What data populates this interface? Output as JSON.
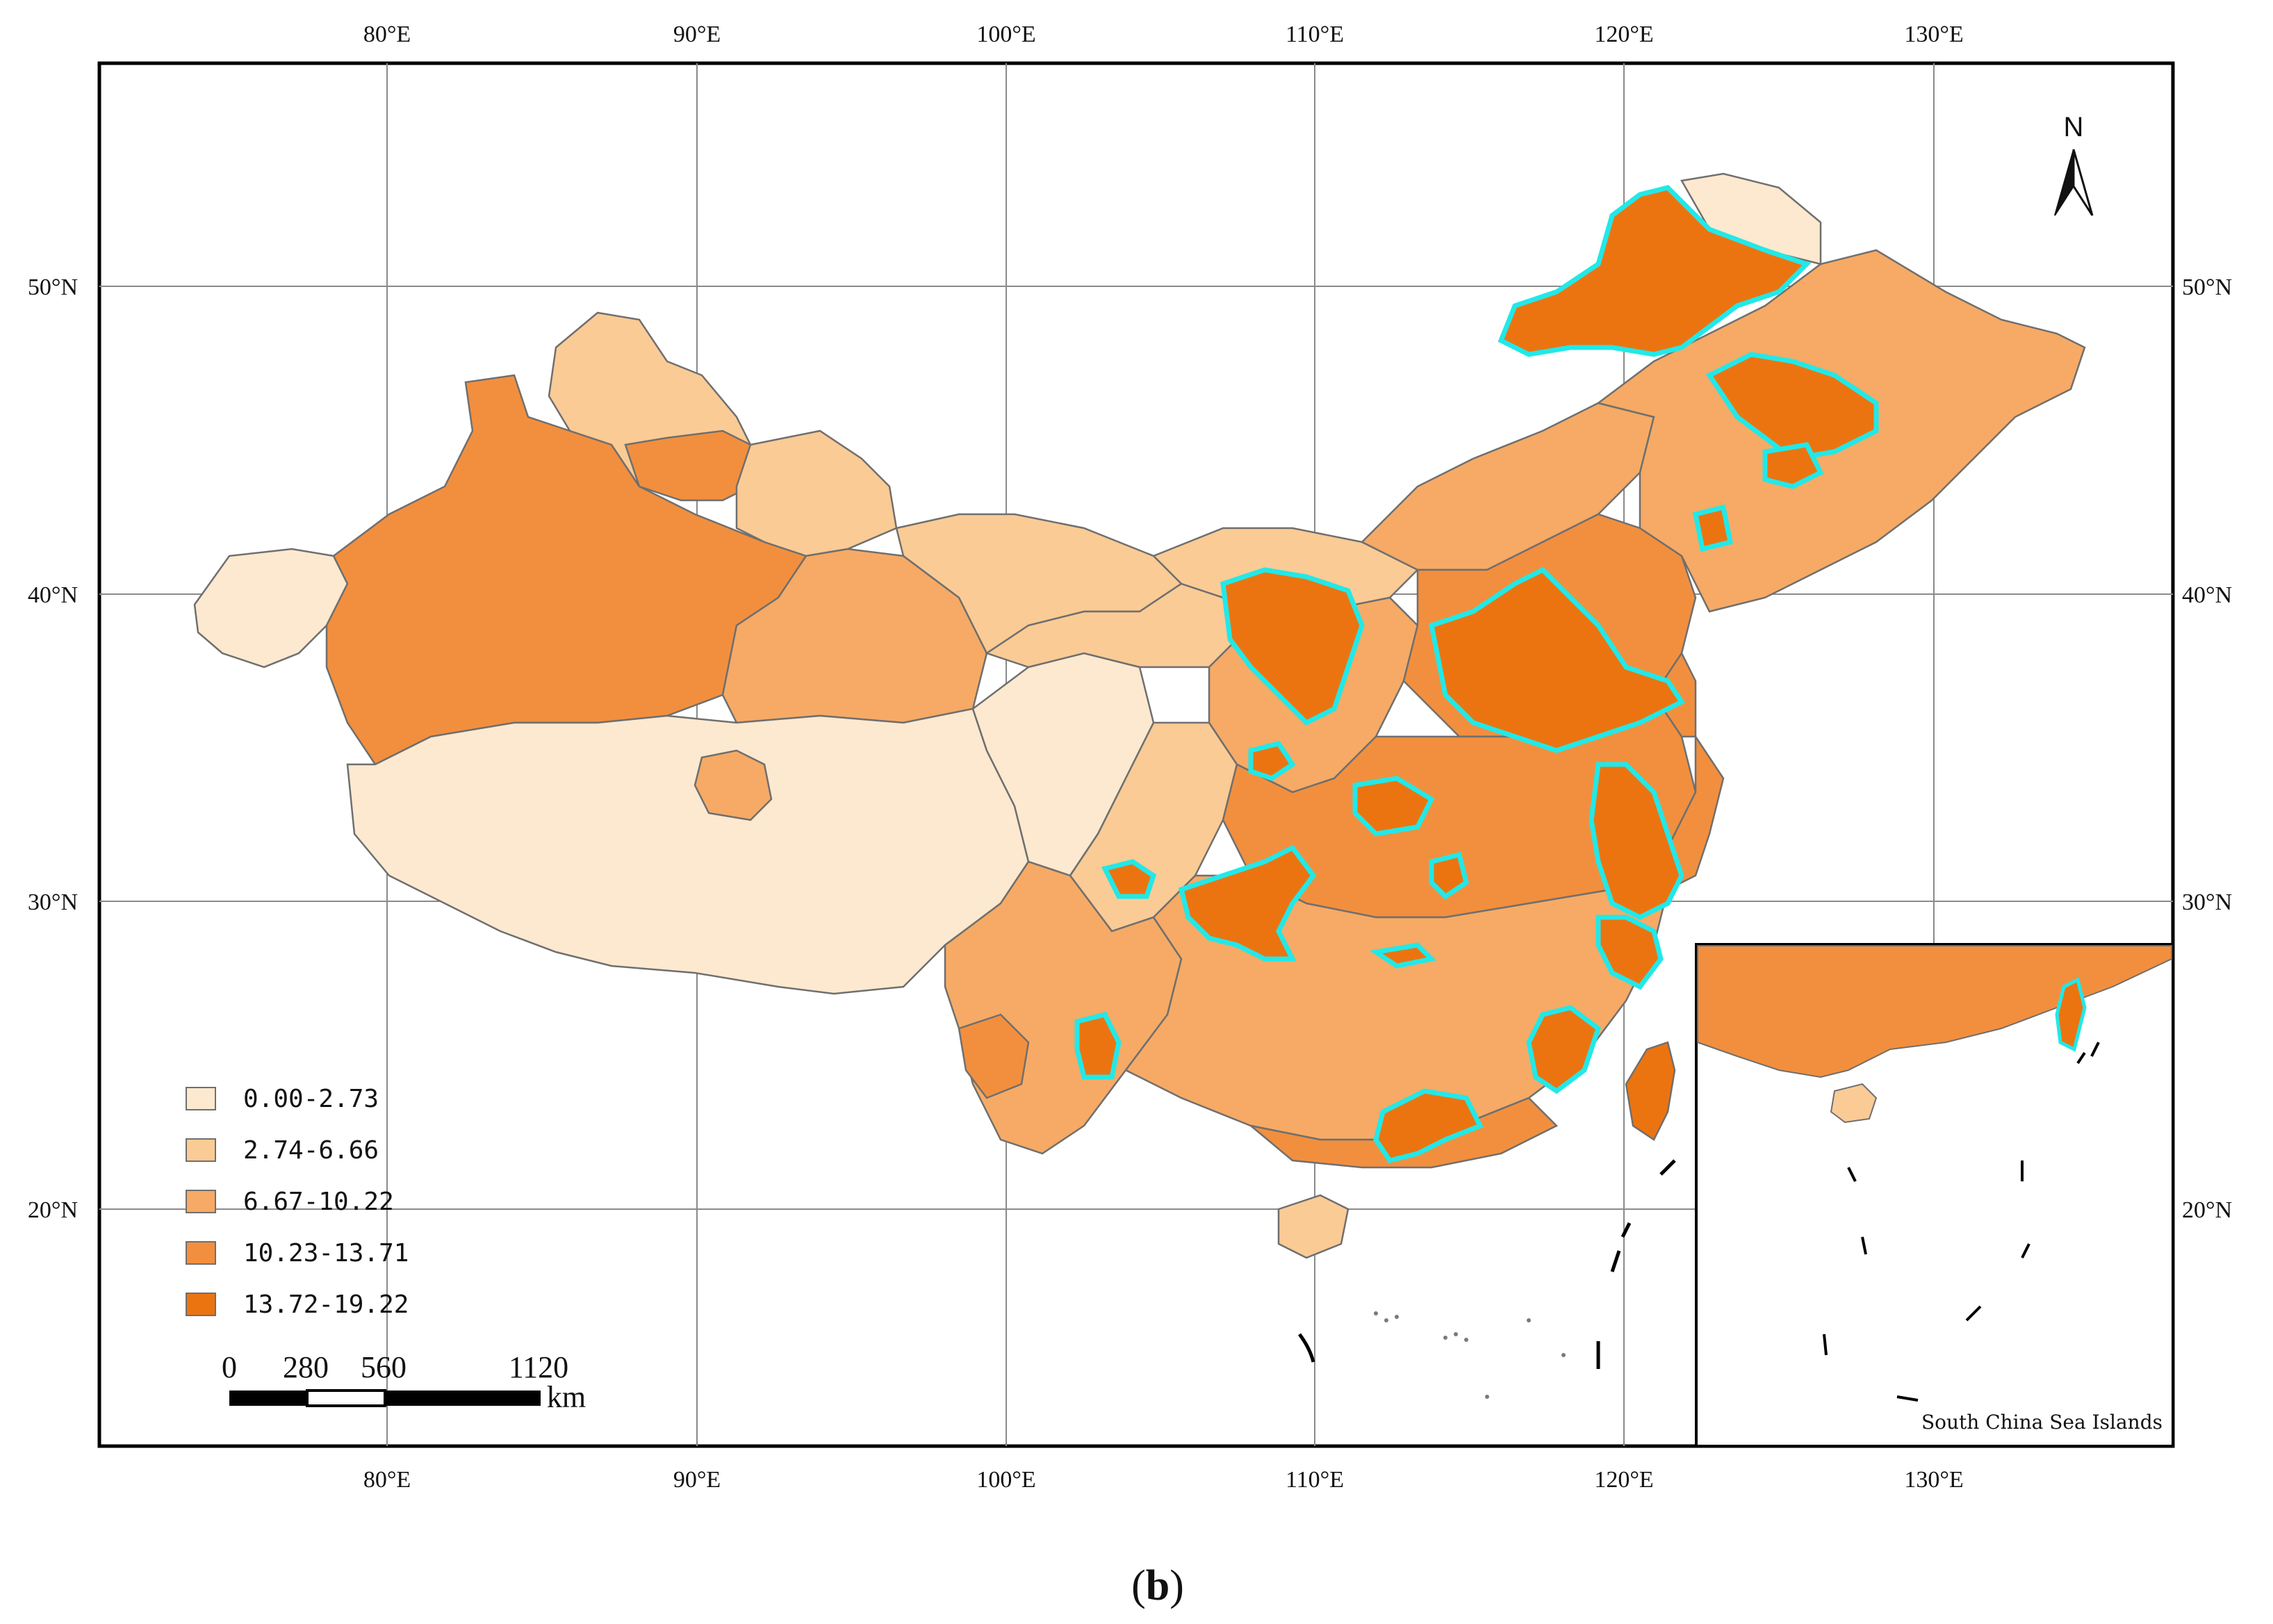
{
  "map": {
    "longitude_ticks": [
      "80°E",
      "90°E",
      "100°E",
      "110°E",
      "120°E",
      "130°E"
    ],
    "latitude_ticks": [
      "50°N",
      "40°N",
      "30°N",
      "20°N"
    ],
    "legend": {
      "classes": [
        {
          "label": "0.00-2.73",
          "color": "#fde9cf"
        },
        {
          "label": "2.74-6.66",
          "color": "#fbcb95"
        },
        {
          "label": "6.67-10.22",
          "color": "#f6aa65"
        },
        {
          "label": "10.23-13.71",
          "color": "#f28f3e"
        },
        {
          "label": "13.72-19.22",
          "color": "#ec7410"
        }
      ]
    },
    "highlight_color": "#22e8e8",
    "boundary_color": "#7a7a7a",
    "scale_bar": {
      "ticks": [
        "0",
        "280",
        "560",
        "1120"
      ],
      "unit": "km"
    },
    "north_arrow": {
      "label": "N"
    },
    "inset": {
      "label": "South China Sea Islands"
    },
    "caption": {
      "open": "(",
      "letter": "b",
      "close": ")"
    }
  }
}
